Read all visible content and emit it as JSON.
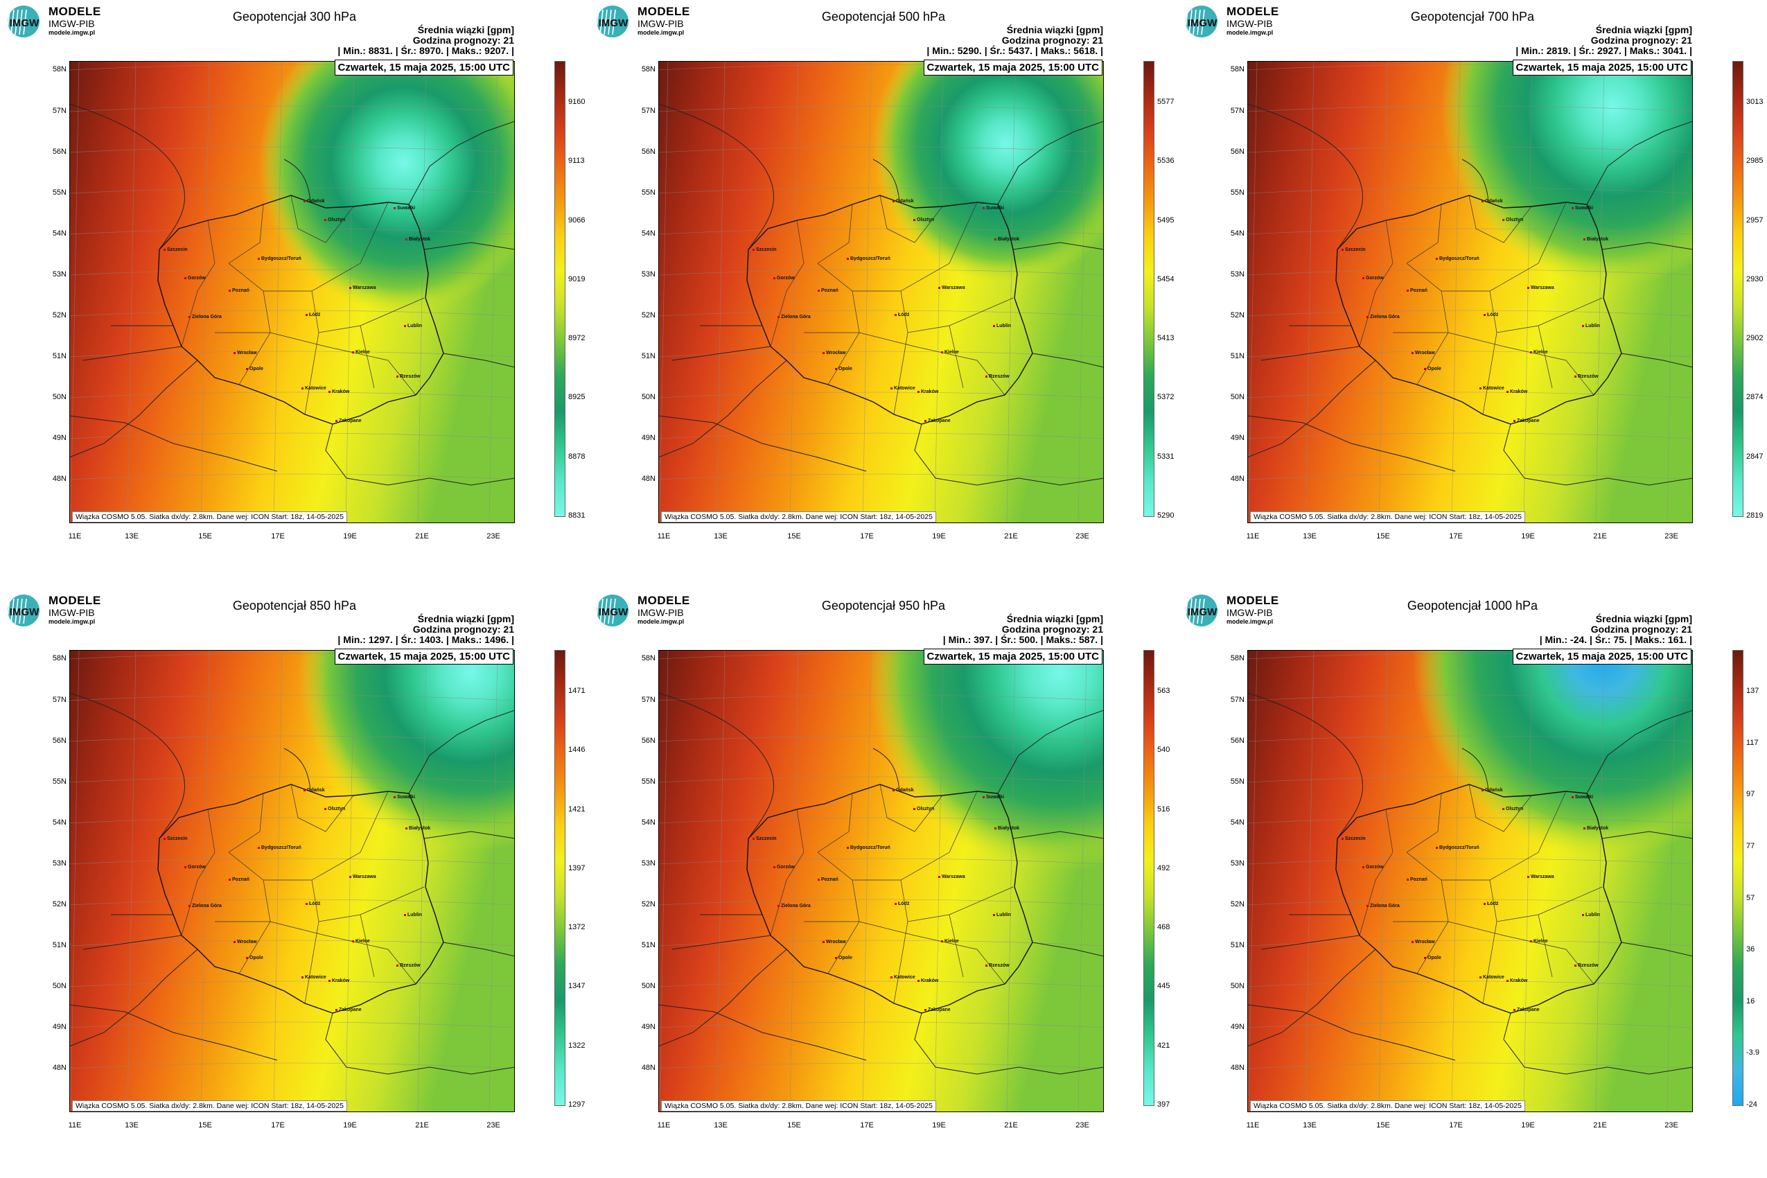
{
  "brand": {
    "name": "MODELE",
    "org": "IMGW-PIB",
    "url": "modele.imgw.pl",
    "logo_text": "IMGW"
  },
  "common": {
    "subtitle": "Średnia wiązki [gpm]",
    "forecast_hour": "Godzina prognozy: 21",
    "date": "Czwartek, 15 maja 2025, 15:00 UTC",
    "footer": "Wiązka COSMO 5.05. Siatka dx/dy: 2.8km. Dane wej: ICON Start: 18z, 14-05-2025",
    "lat_labels": [
      "58N",
      "57N",
      "56N",
      "55N",
      "54N",
      "53N",
      "52N",
      "51N",
      "50N",
      "49N",
      "48N"
    ],
    "lon_labels": [
      "11E",
      "13E",
      "15E",
      "17E",
      "19E",
      "21E",
      "23E"
    ],
    "cities": [
      "Gdańsk",
      "Olsztyn",
      "Suwałki",
      "Szczecin",
      "Bydgoszcz/Toruń",
      "Białystok",
      "Gorzów",
      "Poznań",
      "Warszawa",
      "Zielona Góra",
      "Łódź",
      "Lublin",
      "Wrocław",
      "Kielce",
      "Opole",
      "Rzeszów",
      "Katowice",
      "Kraków",
      "Zakopane"
    ]
  },
  "panels": [
    {
      "title": "Geopotencjał 300 hPa",
      "stats": "| Min.:   8831. | Śr.:   8970. | Maks.:   9207. |",
      "colorbar": [
        "9160",
        "9113",
        "9066",
        "9019",
        "8972",
        "8925",
        "8878",
        "8831"
      ],
      "map": {
        "low": [
          0.75,
          0.22
        ],
        "lowshape": [
          0.38,
          0.52
        ],
        "west_color": "#d8401a"
      }
    },
    {
      "title": "Geopotencjał 500 hPa",
      "stats": "| Min.:   5290. | Śr.:   5437. | Maks.:   5618. |",
      "colorbar": [
        "5577",
        "5536",
        "5495",
        "5454",
        "5413",
        "5372",
        "5331",
        "5290"
      ],
      "map": {
        "low": [
          0.78,
          0.18
        ],
        "lowshape": [
          0.35,
          0.45
        ],
        "west_color": "#d8401a"
      }
    },
    {
      "title": "Geopotencjał 700 hPa",
      "stats": "| Min.:   2819. | Śr.:   2927. | Maks.:   3041. |",
      "colorbar": [
        "3013",
        "2985",
        "2957",
        "2930",
        "2902",
        "2874",
        "2847",
        "2819"
      ],
      "map": {
        "low": [
          0.82,
          0.1
        ],
        "lowshape": [
          0.45,
          0.45
        ],
        "west_color": "#c83818"
      }
    },
    {
      "title": "Geopotencjał 850 hPa",
      "stats": "| Min.:   1297. | Śr.:   1403. | Maks.:   1496. |",
      "colorbar": [
        "1471",
        "1446",
        "1421",
        "1397",
        "1372",
        "1347",
        "1322",
        "1297"
      ],
      "map": {
        "low": [
          0.9,
          0.05
        ],
        "lowshape": [
          0.45,
          0.45
        ],
        "west_color": "#c83818"
      }
    },
    {
      "title": "Geopotencjał 950 hPa",
      "stats": "| Min.:   397. | Śr.:   500. | Maks.:   587. |",
      "colorbar": [
        "563",
        "540",
        "516",
        "492",
        "468",
        "445",
        "421",
        "397"
      ],
      "map": {
        "low": [
          0.9,
          0.05
        ],
        "lowshape": [
          0.5,
          0.45
        ],
        "west_color": "#c83818"
      }
    },
    {
      "title": "Geopotencjał 1000 hPa",
      "stats": "| Min.:   -24. | Śr.:   75. | Maks.:   161. |",
      "colorbar": [
        "137",
        "117",
        "97",
        "77",
        "57",
        "36",
        "16",
        "-3.9",
        "-24"
      ],
      "map": {
        "low": [
          0.8,
          0.02
        ],
        "lowshape": [
          0.5,
          0.5
        ],
        "west_color": "#c03418"
      }
    }
  ]
}
